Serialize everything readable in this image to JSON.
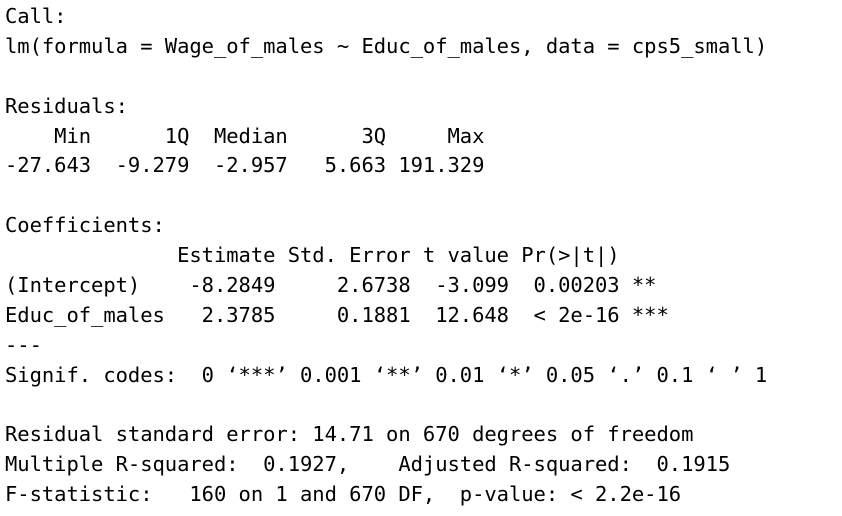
{
  "console_output": {
    "lines": [
      "Call:",
      "lm(formula = Wage_of_males ~ Educ_of_males, data = cps5_small)",
      "",
      "Residuals:",
      "    Min      1Q  Median      3Q     Max ",
      "-27.643  -9.279  -2.957   5.663 191.329 ",
      "",
      "Coefficients:",
      "              Estimate Std. Error t value Pr(>|t|)    ",
      "(Intercept)    -8.2849     2.6738  -3.099  0.00203 ** ",
      "Educ_of_males   2.3785     0.1881  12.648  < 2e-16 ***",
      "---",
      "Signif. codes:  0 ‘***’ 0.001 ‘**’ 0.01 ‘*’ 0.05 ‘.’ 0.1 ‘ ’ 1",
      "",
      "Residual standard error: 14.71 on 670 degrees of freedom",
      "Multiple R-squared:  0.1927,\tAdjusted R-squared:  0.1915 ",
      "F-statistic:   160 on 1 and 670 DF,  p-value: < 2.2e-16"
    ]
  },
  "colors": {
    "background": "#ffffff",
    "text": "#000000"
  }
}
